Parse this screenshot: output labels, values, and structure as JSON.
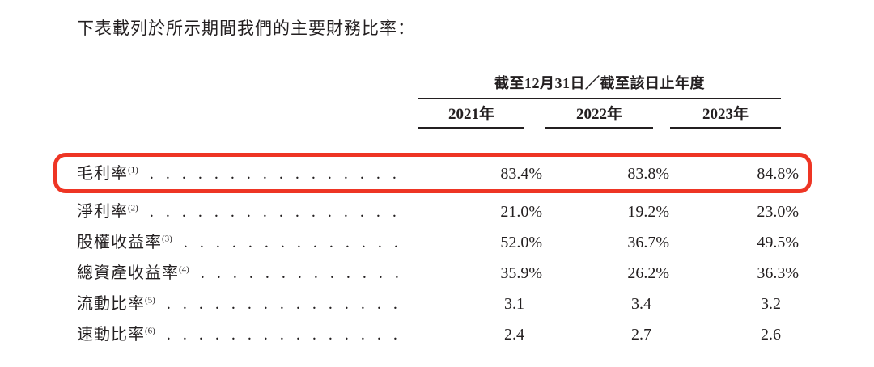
{
  "page": {
    "title": "下表載列於所示期間我們的主要財務比率："
  },
  "table": {
    "period_header": "截至12月31日／截至該日止年度",
    "year_columns": [
      "2021年",
      "2022年",
      "2023年"
    ],
    "rows": [
      {
        "label": "毛利率",
        "note": "(1)",
        "highlighted": true,
        "values": [
          "83.4%",
          "83.8%",
          "84.8%"
        ]
      },
      {
        "label": "淨利率",
        "note": "(2)",
        "highlighted": false,
        "values": [
          "21.0%",
          "19.2%",
          "23.0%"
        ]
      },
      {
        "label": "股權收益率",
        "note": "(3)",
        "highlighted": false,
        "values": [
          "52.0%",
          "36.7%",
          "49.5%"
        ]
      },
      {
        "label": "總資產收益率",
        "note": "(4)",
        "highlighted": false,
        "values": [
          "35.9%",
          "26.2%",
          "36.3%"
        ]
      },
      {
        "label": "流動比率",
        "note": "(5)",
        "highlighted": false,
        "values": [
          "3.1",
          "3.4",
          "3.2"
        ]
      },
      {
        "label": "速動比率",
        "note": "(6)",
        "highlighted": false,
        "values": [
          "2.4",
          "2.7",
          "2.6"
        ]
      }
    ]
  },
  "colors": {
    "highlight_border": "#ee3524",
    "text": "#231f20",
    "rule": "#231f20",
    "background": "#ffffff"
  }
}
